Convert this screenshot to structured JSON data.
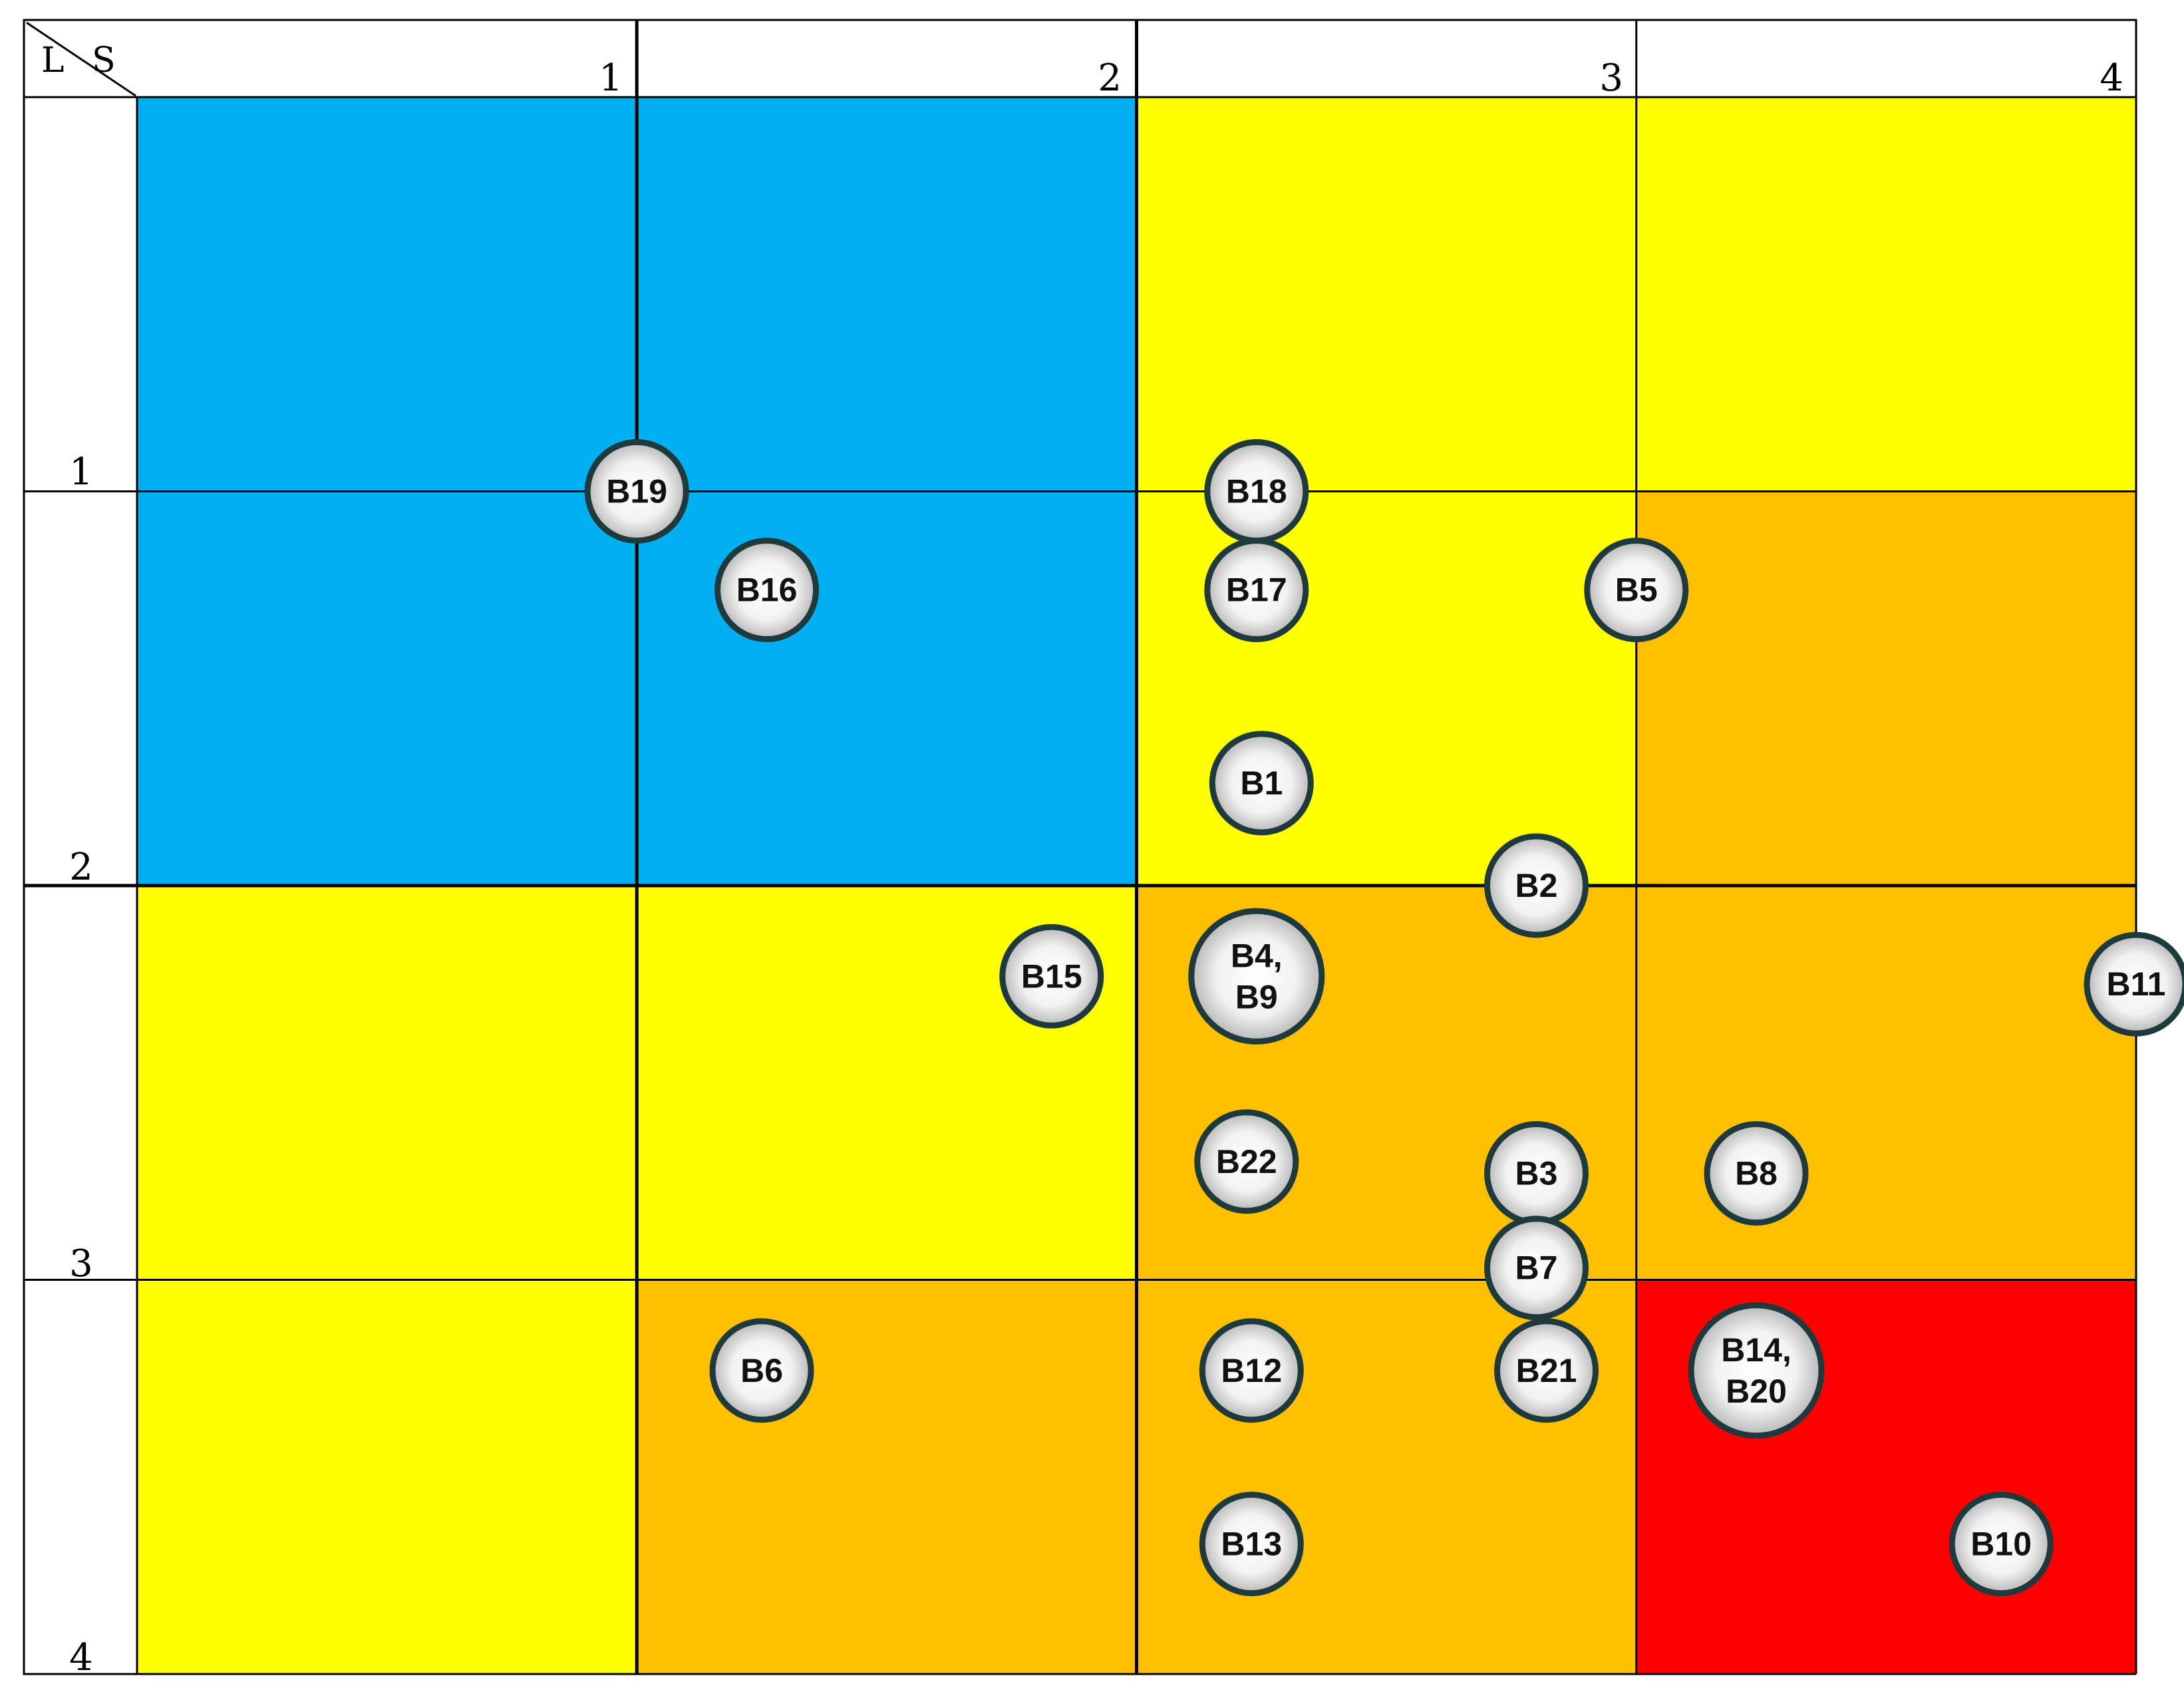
{
  "chart_data": {
    "type": "scatter",
    "title": "",
    "corner_label": {
      "row_axis": "L",
      "col_axis": "S"
    },
    "x_axis": {
      "label": "S",
      "ticks": [
        "1",
        "2",
        "3",
        "4"
      ],
      "range": [
        0,
        4
      ]
    },
    "y_axis": {
      "label": "L",
      "ticks": [
        "1",
        "2",
        "3",
        "4"
      ],
      "range": [
        0,
        4
      ],
      "direction": "top-to-bottom"
    },
    "grid": true,
    "cells": [
      [
        "#00b0f0",
        "#00b0f0",
        "#ffff00",
        "#ffff00"
      ],
      [
        "#00b0f0",
        "#00b0f0",
        "#ffff00",
        "#ffc000"
      ],
      [
        "#ffff00",
        "#ffff00",
        "#ffc000",
        "#ffc000"
      ],
      [
        "#ffff00",
        "#ffc000",
        "#ffc000",
        "#ff0000"
      ]
    ],
    "points": [
      {
        "lines": [
          "B19"
        ],
        "x": 1.0,
        "y": 1.0
      },
      {
        "lines": [
          "B18"
        ],
        "x": 2.24,
        "y": 1.0
      },
      {
        "lines": [
          "B16"
        ],
        "x": 1.26,
        "y": 1.25
      },
      {
        "lines": [
          "B17"
        ],
        "x": 2.24,
        "y": 1.25
      },
      {
        "lines": [
          "B5"
        ],
        "x": 3.0,
        "y": 1.25
      },
      {
        "lines": [
          "B1"
        ],
        "x": 2.25,
        "y": 1.74
      },
      {
        "lines": [
          "B2"
        ],
        "x": 2.8,
        "y": 2.0
      },
      {
        "lines": [
          "B15"
        ],
        "x": 1.83,
        "y": 2.23
      },
      {
        "lines": [
          "B4,",
          "B9"
        ],
        "x": 2.24,
        "y": 2.23
      },
      {
        "lines": [
          "B11"
        ],
        "x": 4.0,
        "y": 2.25
      },
      {
        "lines": [
          "B22"
        ],
        "x": 2.22,
        "y": 2.7
      },
      {
        "lines": [
          "B3"
        ],
        "x": 2.8,
        "y": 2.73
      },
      {
        "lines": [
          "B8"
        ],
        "x": 3.24,
        "y": 2.73
      },
      {
        "lines": [
          "B7"
        ],
        "x": 2.8,
        "y": 2.97
      },
      {
        "lines": [
          "B6"
        ],
        "x": 1.25,
        "y": 3.23
      },
      {
        "lines": [
          "B12"
        ],
        "x": 2.23,
        "y": 3.23
      },
      {
        "lines": [
          "B21"
        ],
        "x": 2.82,
        "y": 3.23
      },
      {
        "lines": [
          "B14,",
          "B20"
        ],
        "x": 3.24,
        "y": 3.23
      },
      {
        "lines": [
          "B13"
        ],
        "x": 2.23,
        "y": 3.67
      },
      {
        "lines": [
          "B10"
        ],
        "x": 3.73,
        "y": 3.67
      }
    ]
  }
}
